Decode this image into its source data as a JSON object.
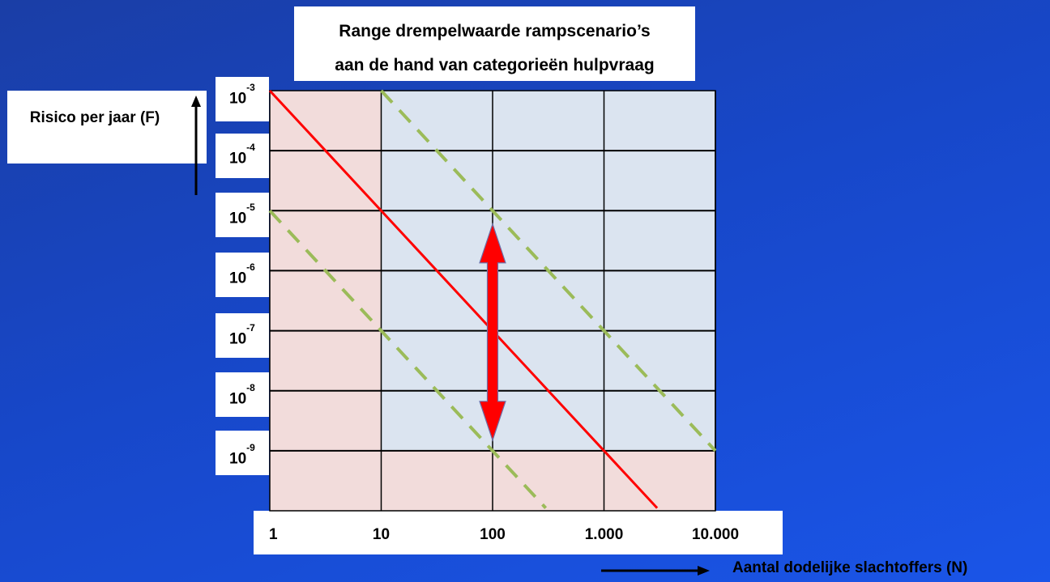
{
  "chart_data": {
    "type": "line",
    "title": [
      "Range drempelwaarde rampscenario’s",
      "aan de hand van categorieën hulpvraag"
    ],
    "ylabel": "Risico per jaar (F)",
    "xlabel": "Aantal dodelijke slachtoffers (N)",
    "x_scale": "log",
    "y_scale": "log",
    "xlim": [
      1,
      10000
    ],
    "ylim": [
      1e-10,
      0.001
    ],
    "x_ticks": [
      1,
      10,
      100,
      1000,
      10000
    ],
    "x_tick_labels": [
      "1",
      "10",
      "100",
      "1.000",
      "10.000"
    ],
    "y_ticks": [
      0.001,
      0.0001,
      1e-05,
      1e-06,
      1e-07,
      1e-08,
      1e-09
    ],
    "y_tick_labels": [
      {
        "base": "10",
        "exp": "-3"
      },
      {
        "base": "10",
        "exp": "-4"
      },
      {
        "base": "10",
        "exp": "-5"
      },
      {
        "base": "10",
        "exp": "-6"
      },
      {
        "base": "10",
        "exp": "-7"
      },
      {
        "base": "10",
        "exp": "-8"
      },
      {
        "base": "10",
        "exp": "-9"
      }
    ],
    "grid": true,
    "regions": [
      {
        "x": [
          10,
          10000
        ],
        "y": [
          1e-09,
          0.001
        ],
        "color": "#dbe4f0"
      },
      {
        "x": [
          1,
          10
        ],
        "y": [
          1e-10,
          0.001
        ],
        "color": "#f2dcdb"
      },
      {
        "x": [
          10,
          10000
        ],
        "y": [
          1e-10,
          1e-09
        ],
        "color": "#f2dcdb"
      }
    ],
    "series": [
      {
        "style": "solid",
        "color": "#ff0000",
        "x": [
          1,
          3000
        ],
        "y": [
          0.001,
          1.11e-10
        ]
      },
      {
        "style": "dashed",
        "color": "#9bbb59",
        "x": [
          10,
          10000
        ],
        "y": [
          0.001,
          1e-09
        ]
      },
      {
        "style": "dashed",
        "color": "#9bbb59",
        "x": [
          1,
          300
        ],
        "y": [
          1e-05,
          1.11e-10
        ]
      }
    ],
    "annotations": [
      {
        "type": "double-arrow",
        "color": "#ff0000",
        "x": 100,
        "y": [
          1.5e-09,
          6e-06
        ]
      }
    ]
  }
}
